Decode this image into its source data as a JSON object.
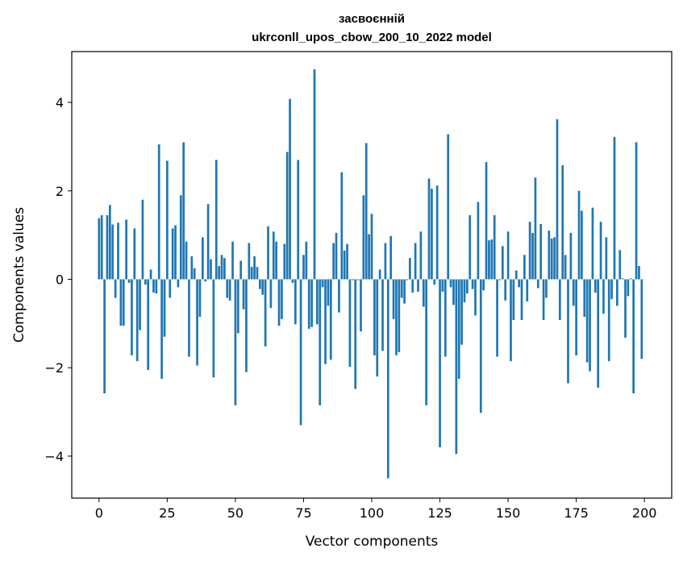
{
  "chart_data": {
    "type": "bar",
    "title_line1": "засвоєнній",
    "title_line2": "ukrconll_upos_cbow_200_10_2022 model",
    "xlabel": "Vector components",
    "ylabel": "Components values",
    "xlim": [
      -10,
      210
    ],
    "ylim": [
      -4.95,
      5.15
    ],
    "xticks": [
      0,
      25,
      50,
      75,
      100,
      125,
      150,
      175,
      200
    ],
    "yticks": [
      -4,
      -2,
      0,
      2,
      4
    ],
    "bar_color": "#1f77b4",
    "grid": false,
    "values": [
      1.38,
      1.45,
      -2.58,
      1.45,
      1.68,
      1.24,
      -0.42,
      1.28,
      -1.05,
      -1.05,
      1.35,
      -0.08,
      -1.72,
      1.15,
      -1.85,
      -1.15,
      1.8,
      -0.12,
      -2.05,
      0.22,
      -0.3,
      -0.32,
      3.05,
      -2.25,
      -1.3,
      2.68,
      -0.42,
      1.15,
      1.22,
      -0.18,
      1.9,
      3.1,
      0.85,
      -1.75,
      0.52,
      0.25,
      -1.95,
      -0.85,
      0.95,
      -0.05,
      1.7,
      0.45,
      -2.22,
      2.7,
      0.3,
      0.55,
      0.48,
      -0.42,
      -0.48,
      0.85,
      -2.85,
      -1.22,
      0.42,
      -0.68,
      -2.1,
      0.82,
      0.28,
      0.52,
      0.28,
      -0.22,
      -0.35,
      -1.52,
      1.2,
      -0.65,
      1.08,
      0.85,
      -1.05,
      -0.9,
      0.8,
      2.88,
      4.08,
      -0.08,
      -1.02,
      2.7,
      -3.3,
      0.55,
      0.85,
      -1.12,
      -1.08,
      4.75,
      -1.02,
      -2.85,
      -0.18,
      -1.92,
      -0.6,
      -1.82,
      0.82,
      1.05,
      -0.75,
      2.42,
      0.65,
      0.8,
      -1.98,
      -0.02,
      -2.48,
      -0.02,
      -1.18,
      1.9,
      3.08,
      1.02,
      1.48,
      -1.72,
      -2.2,
      0.22,
      -1.62,
      0.82,
      -4.5,
      0.98,
      -0.9,
      -1.72,
      -1.65,
      -0.42,
      -0.55,
      -0.02,
      0.48,
      -0.3,
      0.82,
      -0.28,
      1.08,
      -0.62,
      -2.85,
      2.28,
      2.05,
      -0.12,
      2.12,
      -3.8,
      -0.28,
      -1.75,
      3.28,
      -0.18,
      -0.58,
      -3.95,
      -2.25,
      -1.48,
      -0.52,
      -0.32,
      1.45,
      -0.22,
      -0.82,
      1.75,
      -3.02,
      -0.25,
      2.65,
      0.88,
      0.9,
      1.45,
      -1.75,
      -0.02,
      0.75,
      -0.48,
      1.08,
      -1.85,
      -0.92,
      0.2,
      -0.18,
      -0.92,
      0.55,
      -0.5,
      1.3,
      1.05,
      2.3,
      -0.2,
      1.25,
      -0.92,
      -0.42,
      1.1,
      0.92,
      0.95,
      3.62,
      -0.92,
      2.58,
      0.55,
      -2.35,
      1.05,
      -0.6,
      -1.72,
      2.0,
      1.55,
      -0.85,
      -1.88,
      -2.08,
      1.62,
      -0.3,
      -2.45,
      1.3,
      -0.78,
      0.95,
      -1.85,
      -0.45,
      3.22,
      -0.6,
      0.66,
      0.02,
      -1.32,
      -0.38,
      0.02,
      -2.58,
      3.1,
      0.3,
      -1.8
    ]
  }
}
